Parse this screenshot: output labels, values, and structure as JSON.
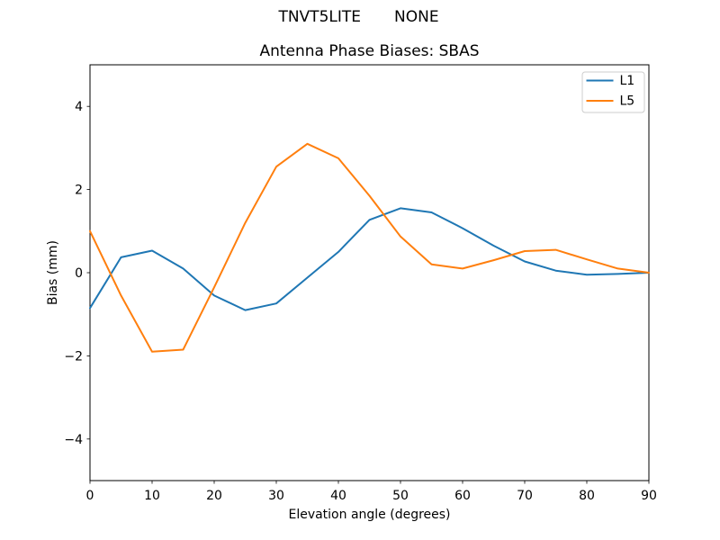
{
  "header": {
    "suptitle_left": "TNVT5LITE",
    "suptitle_right": "NONE"
  },
  "chart_data": {
    "type": "line",
    "title": "Antenna Phase Biases: SBAS",
    "xlabel": "Elevation angle (degrees)",
    "ylabel": "Bias (mm)",
    "xlim": [
      0,
      90
    ],
    "ylim": [
      -5,
      5
    ],
    "grid": false,
    "legend_position": "upper right",
    "xticks": [
      0,
      10,
      20,
      30,
      40,
      50,
      60,
      70,
      80,
      90
    ],
    "xticklabels": [
      "0",
      "10",
      "20",
      "30",
      "40",
      "50",
      "60",
      "70",
      "80",
      "90"
    ],
    "yticks": [
      -4,
      -2,
      0,
      2,
      4
    ],
    "yticklabels": [
      "−4",
      "−2",
      "0",
      "2",
      "4"
    ],
    "x": [
      0,
      5,
      10,
      15,
      20,
      25,
      30,
      35,
      40,
      45,
      50,
      55,
      60,
      65,
      70,
      75,
      80,
      85,
      90
    ],
    "series": [
      {
        "name": "L1",
        "color": "#1f77b4",
        "values": [
          -0.85,
          0.37,
          0.53,
          0.1,
          -0.55,
          -0.9,
          -0.74,
          -0.12,
          0.5,
          1.27,
          1.55,
          1.45,
          1.07,
          0.65,
          0.27,
          0.05,
          -0.05,
          -0.03,
          0.0
        ]
      },
      {
        "name": "L5",
        "color": "#ff7f0e",
        "values": [
          1.0,
          -0.55,
          -1.9,
          -1.85,
          -0.35,
          1.2,
          2.55,
          3.1,
          2.75,
          1.85,
          0.87,
          0.2,
          0.1,
          0.3,
          0.52,
          0.55,
          0.32,
          0.1,
          0.0
        ]
      }
    ]
  }
}
